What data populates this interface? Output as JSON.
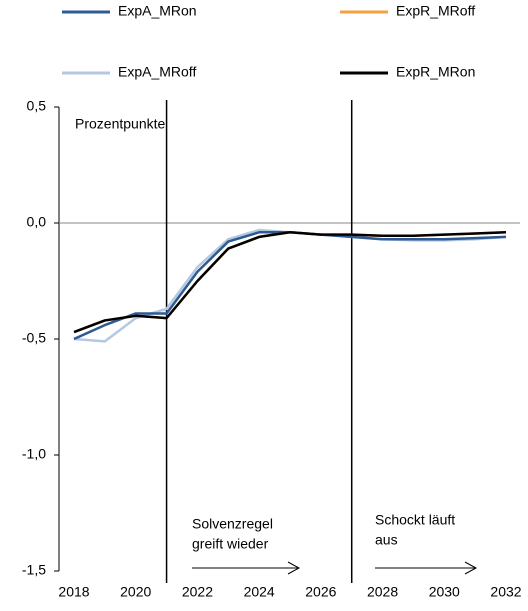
{
  "chart_data": {
    "type": "line",
    "ylabel": "Prozentpunkte",
    "x": [
      2018,
      2019,
      2020,
      2021,
      2022,
      2023,
      2024,
      2025,
      2026,
      2027,
      2028,
      2029,
      2030,
      2031,
      2032
    ],
    "series": [
      {
        "name": "ExpA_MRon",
        "color": "#2e5a94",
        "values": [
          -0.5,
          -0.44,
          -0.39,
          -0.39,
          -0.21,
          -0.08,
          -0.04,
          -0.04,
          -0.05,
          -0.06,
          -0.07,
          -0.07,
          -0.07,
          -0.065,
          -0.06
        ]
      },
      {
        "name": "ExpR_MRoff",
        "color": "#f4a040",
        "values": [
          -0.47,
          -0.42,
          -0.4,
          -0.41,
          -0.25,
          -0.11,
          -0.06,
          -0.04,
          -0.05,
          -0.05,
          -0.055,
          -0.055,
          -0.05,
          -0.045,
          -0.04
        ]
      },
      {
        "name": "ExpA_MRoff",
        "color": "#b4c8e0",
        "values": [
          -0.5,
          -0.51,
          -0.41,
          -0.37,
          -0.19,
          -0.07,
          -0.03,
          -0.04,
          -0.05,
          -0.06,
          -0.07,
          -0.075,
          -0.075,
          -0.07,
          -0.06
        ]
      },
      {
        "name": "ExpR_MRon",
        "color": "#000000",
        "values": [
          -0.47,
          -0.42,
          -0.4,
          -0.41,
          -0.25,
          -0.11,
          -0.06,
          -0.04,
          -0.05,
          -0.05,
          -0.055,
          -0.055,
          -0.05,
          -0.045,
          -0.04
        ]
      }
    ],
    "xlim": [
      2018,
      2032
    ],
    "xticks": [
      2018,
      2020,
      2022,
      2024,
      2026,
      2028,
      2030,
      2032
    ],
    "ylim": [
      -1.5,
      0.5
    ],
    "yticks": [
      {
        "value": -1.5,
        "label": "-1,5"
      },
      {
        "value": -1.0,
        "label": "-1,0"
      },
      {
        "value": -0.5,
        "label": "-0,5"
      },
      {
        "value": 0.0,
        "label": "0,0"
      },
      {
        "value": 0.5,
        "label": "0,5"
      }
    ],
    "vlines": [
      2021,
      2027
    ],
    "annotations": [
      [
        "Solvenzregel",
        "greift wieder"
      ],
      [
        "Schockt läuft",
        "aus"
      ]
    ]
  }
}
